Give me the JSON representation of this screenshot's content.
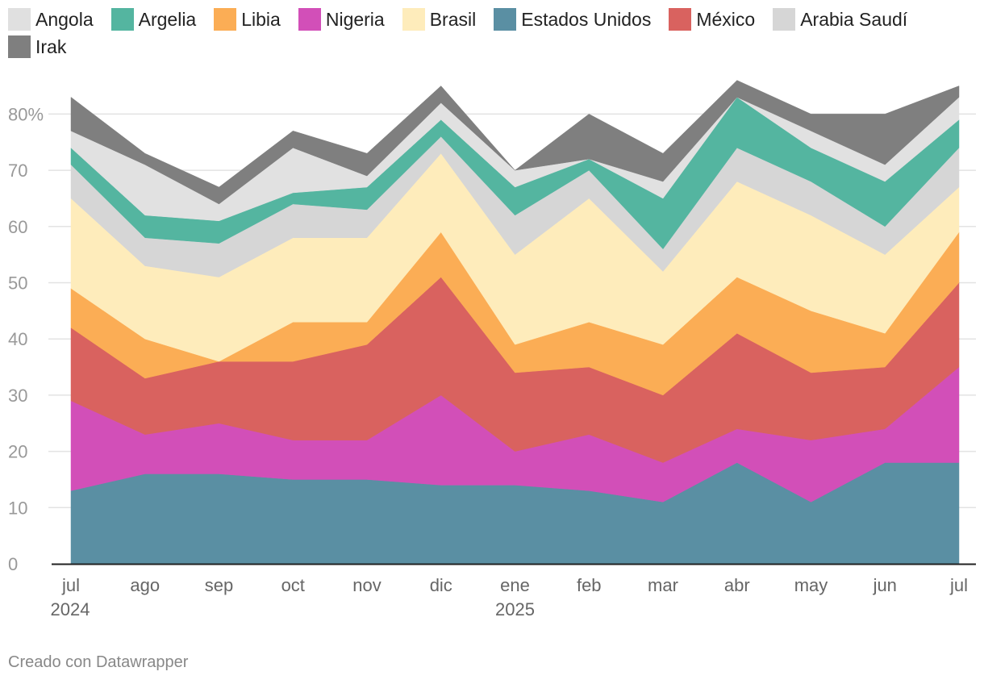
{
  "chart_data": {
    "type": "area",
    "stacked": true,
    "categories": [
      "jul",
      "ago",
      "sep",
      "oct",
      "nov",
      "dic",
      "ene",
      "feb",
      "mar",
      "abr",
      "may",
      "jun",
      "jul"
    ],
    "year_labels": [
      "2024",
      "",
      "",
      "",
      "",
      "",
      "2025",
      "",
      "",
      "",
      "",
      "",
      ""
    ],
    "y_ticks": [
      0,
      10,
      20,
      30,
      40,
      50,
      60,
      70,
      80
    ],
    "y_tick_labels": [
      "0",
      "10",
      "20",
      "30",
      "40",
      "50",
      "60",
      "70",
      "80%"
    ],
    "ylim": [
      0,
      86
    ],
    "unit": "%",
    "series": [
      {
        "name": "Estados Unidos",
        "color": "#5a8fa3",
        "values": [
          13,
          16,
          16,
          15,
          15,
          14,
          14,
          13,
          11,
          18,
          11,
          18,
          18
        ]
      },
      {
        "name": "Nigeria",
        "color": "#d24fb8",
        "values": [
          16,
          7,
          9,
          7,
          7,
          16,
          6,
          10,
          7,
          6,
          11,
          6,
          17
        ]
      },
      {
        "name": "México",
        "color": "#d9625f",
        "values": [
          13,
          10,
          11,
          14,
          17,
          21,
          14,
          12,
          12,
          17,
          12,
          11,
          15
        ]
      },
      {
        "name": "Libia",
        "color": "#fbad55",
        "values": [
          7,
          7,
          0,
          7,
          4,
          8,
          5,
          8,
          9,
          10,
          11,
          6,
          9
        ]
      },
      {
        "name": "Brasil",
        "color": "#feecbb",
        "values": [
          16,
          13,
          15,
          15,
          15,
          14,
          16,
          22,
          13,
          17,
          17,
          14,
          8
        ]
      },
      {
        "name": "Arabia Saudí",
        "color": "#d6d6d6",
        "values": [
          6,
          5,
          6,
          6,
          5,
          3,
          7,
          5,
          4,
          6,
          6,
          5,
          7
        ]
      },
      {
        "name": "Argelia",
        "color": "#54b5a0",
        "values": [
          3,
          4,
          4,
          2,
          4,
          3,
          5,
          2,
          9,
          9,
          6,
          8,
          5
        ]
      },
      {
        "name": "Angola",
        "color": "#e1e1e1",
        "values": [
          3,
          9,
          3,
          8,
          2,
          3,
          3,
          0,
          3,
          0,
          3,
          3,
          4
        ]
      },
      {
        "name": "Irak",
        "color": "#7f7f7f",
        "values": [
          6,
          2,
          3,
          3,
          4,
          3,
          0,
          8,
          5,
          3,
          3,
          9,
          2
        ]
      }
    ]
  },
  "legend": [
    {
      "name": "Angola",
      "color": "#e0e0e0"
    },
    {
      "name": "Argelia",
      "color": "#54b5a0"
    },
    {
      "name": "Libia",
      "color": "#fbad55"
    },
    {
      "name": "Nigeria",
      "color": "#d24fb8"
    },
    {
      "name": "Brasil",
      "color": "#feecbb"
    },
    {
      "name": "Estados Unidos",
      "color": "#5a8fa3"
    },
    {
      "name": "México",
      "color": "#d9625f"
    },
    {
      "name": "Arabia Saudí",
      "color": "#d6d6d6"
    },
    {
      "name": "Irak",
      "color": "#7f7f7f"
    }
  ],
  "footer": "Creado con Datawrapper"
}
